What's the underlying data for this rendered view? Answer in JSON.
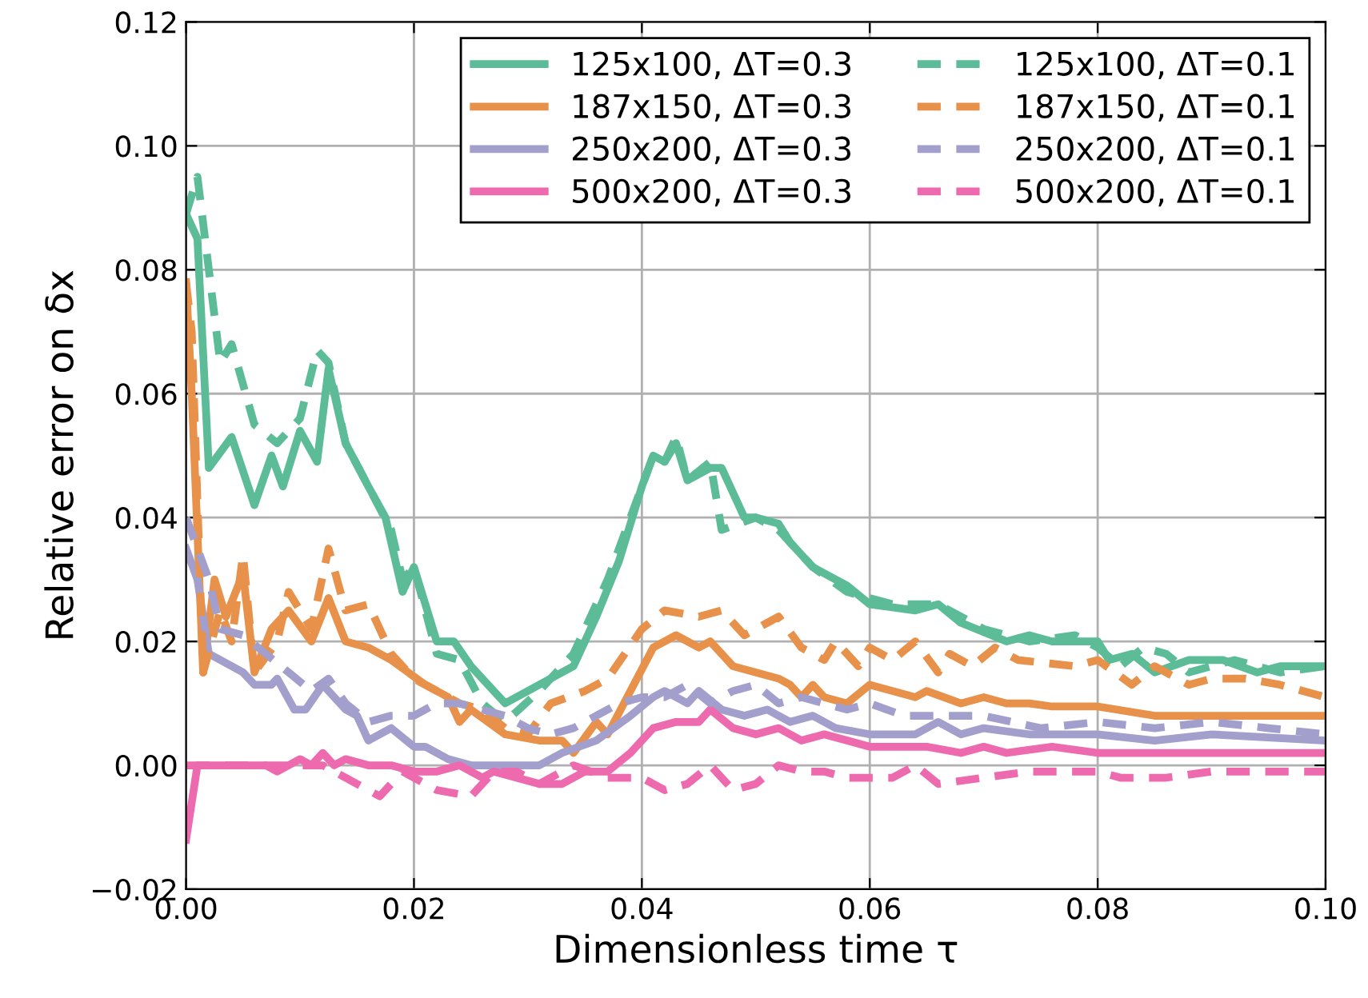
{
  "chart_data": {
    "type": "line",
    "xlabel": "Dimensionless time τ",
    "ylabel": "Relative error on δx",
    "xlim": [
      0,
      0.1
    ],
    "ylim": [
      -0.02,
      0.12
    ],
    "xticks": [
      {
        "value": 0,
        "label": "0.00"
      },
      {
        "value": 0.02,
        "label": "0.02"
      },
      {
        "value": 0.04,
        "label": "0.04"
      },
      {
        "value": 0.06,
        "label": "0.06"
      },
      {
        "value": 0.08,
        "label": "0.08"
      },
      {
        "value": 0.1,
        "label": "0.10"
      }
    ],
    "yticks": [
      {
        "value": -0.02,
        "label": "−0.02"
      },
      {
        "value": 0,
        "label": "0.00"
      },
      {
        "value": 0.02,
        "label": "0.02"
      },
      {
        "value": 0.04,
        "label": "0.04"
      },
      {
        "value": 0.06,
        "label": "0.06"
      },
      {
        "value": 0.08,
        "label": "0.08"
      },
      {
        "value": 0.1,
        "label": "0.10"
      },
      {
        "value": 0.12,
        "label": "0.12"
      }
    ],
    "grid": true,
    "legend": "top right",
    "marker": "none",
    "series": [
      {
        "name": "125x100, ΔT=0.3",
        "color": "#5cbc98",
        "line_style": "solid",
        "x": [
          0,
          0.001,
          0.002,
          0.004,
          0.006,
          0.0075,
          0.0085,
          0.01,
          0.0115,
          0.0125,
          0.014,
          0.016,
          0.0175,
          0.019,
          0.02,
          0.022,
          0.0235,
          0.025,
          0.028,
          0.031,
          0.034,
          0.036,
          0.038,
          0.04,
          0.041,
          0.042,
          0.043,
          0.044,
          0.046,
          0.047,
          0.049,
          0.05,
          0.052,
          0.053,
          0.055,
          0.058,
          0.06,
          0.064,
          0.066,
          0.068,
          0.072,
          0.074,
          0.076,
          0.08,
          0.081,
          0.083,
          0.085,
          0.088,
          0.091,
          0.094,
          0.096,
          0.098,
          0.1
        ],
        "values": [
          0.089,
          0.085,
          0.048,
          0.053,
          0.042,
          0.05,
          0.045,
          0.054,
          0.049,
          0.064,
          0.052,
          0.045,
          0.04,
          0.028,
          0.032,
          0.02,
          0.02,
          0.016,
          0.01,
          0.013,
          0.016,
          0.024,
          0.033,
          0.045,
          0.05,
          0.049,
          0.052,
          0.046,
          0.048,
          0.048,
          0.04,
          0.04,
          0.039,
          0.036,
          0.032,
          0.029,
          0.026,
          0.025,
          0.026,
          0.023,
          0.02,
          0.021,
          0.02,
          0.02,
          0.017,
          0.018,
          0.015,
          0.017,
          0.017,
          0.015,
          0.016,
          0.016,
          0.016
        ]
      },
      {
        "name": "187x150, ΔT=0.3",
        "color": "#e8914a",
        "line_style": "solid",
        "x": [
          0,
          0.0005,
          0.0015,
          0.0025,
          0.0035,
          0.005,
          0.006,
          0.0075,
          0.009,
          0.011,
          0.0125,
          0.014,
          0.016,
          0.018,
          0.021,
          0.023,
          0.024,
          0.025,
          0.028,
          0.031,
          0.033,
          0.034,
          0.036,
          0.037,
          0.039,
          0.041,
          0.043,
          0.045,
          0.046,
          0.048,
          0.05,
          0.052,
          0.053,
          0.054,
          0.055,
          0.056,
          0.058,
          0.06,
          0.062,
          0.064,
          0.065,
          0.068,
          0.07,
          0.072,
          0.074,
          0.076,
          0.078,
          0.08,
          0.085,
          0.09,
          0.1
        ],
        "values": [
          0.078,
          0.06,
          0.015,
          0.03,
          0.024,
          0.031,
          0.015,
          0.022,
          0.025,
          0.02,
          0.027,
          0.02,
          0.019,
          0.017,
          0.013,
          0.011,
          0.007,
          0.009,
          0.005,
          0.004,
          0.004,
          0.002,
          0.007,
          0.005,
          0.012,
          0.019,
          0.021,
          0.019,
          0.02,
          0.016,
          0.015,
          0.014,
          0.013,
          0.011,
          0.013,
          0.011,
          0.01,
          0.013,
          0.012,
          0.011,
          0.012,
          0.01,
          0.011,
          0.01,
          0.01,
          0.0095,
          0.0095,
          0.0095,
          0.008,
          0.008,
          0.008
        ]
      },
      {
        "name": "250x200, ΔT=0.3",
        "color": "#a39fcc",
        "line_style": "solid",
        "x": [
          0,
          0.001,
          0.002,
          0.004,
          0.005,
          0.006,
          0.0075,
          0.008,
          0.0095,
          0.0105,
          0.012,
          0.014,
          0.015,
          0.016,
          0.018,
          0.02,
          0.021,
          0.023,
          0.025,
          0.028,
          0.031,
          0.033,
          0.036,
          0.039,
          0.041,
          0.042,
          0.044,
          0.045,
          0.047,
          0.049,
          0.051,
          0.053,
          0.055,
          0.057,
          0.06,
          0.064,
          0.066,
          0.068,
          0.07,
          0.074,
          0.08,
          0.085,
          0.09,
          0.1
        ],
        "values": [
          0.035,
          0.03,
          0.018,
          0.016,
          0.015,
          0.013,
          0.013,
          0.014,
          0.009,
          0.009,
          0.013,
          0.009,
          0.008,
          0.004,
          0.006,
          0.003,
          0.003,
          0.001,
          0.0,
          0.0,
          0.0,
          0.002,
          0.004,
          0.008,
          0.011,
          0.012,
          0.01,
          0.012,
          0.009,
          0.008,
          0.009,
          0.007,
          0.008,
          0.006,
          0.005,
          0.005,
          0.007,
          0.005,
          0.006,
          0.005,
          0.005,
          0.004,
          0.005,
          0.004
        ]
      },
      {
        "name": "500x200, ΔT=0.3",
        "color": "#ee6aae",
        "line_style": "solid",
        "x": [
          0,
          0.001,
          0.003,
          0.005,
          0.007,
          0.008,
          0.01,
          0.011,
          0.012,
          0.013,
          0.014,
          0.016,
          0.018,
          0.02,
          0.022,
          0.024,
          0.026,
          0.027,
          0.029,
          0.031,
          0.033,
          0.035,
          0.037,
          0.039,
          0.041,
          0.043,
          0.045,
          0.046,
          0.048,
          0.05,
          0.052,
          0.054,
          0.056,
          0.058,
          0.06,
          0.065,
          0.068,
          0.07,
          0.072,
          0.076,
          0.08,
          0.085,
          0.09,
          0.1
        ],
        "values": [
          -0.012,
          0.0,
          0.0,
          0.0,
          0.0,
          -0.001,
          0.001,
          0.0,
          0.002,
          0.0,
          0.001,
          0.0,
          0.0,
          -0.001,
          -0.001,
          0.0,
          -0.002,
          -0.001,
          -0.002,
          -0.003,
          -0.003,
          -0.001,
          -0.001,
          0.002,
          0.006,
          0.007,
          0.007,
          0.009,
          0.006,
          0.005,
          0.006,
          0.004,
          0.005,
          0.004,
          0.003,
          0.003,
          0.002,
          0.003,
          0.002,
          0.003,
          0.002,
          0.002,
          0.002,
          0.002
        ]
      },
      {
        "name": "125x100, ΔT=0.1",
        "color": "#5cbc98",
        "line_style": "dashed",
        "x": [
          0,
          0.001,
          0.003,
          0.004,
          0.006,
          0.008,
          0.01,
          0.0115,
          0.0125,
          0.014,
          0.016,
          0.018,
          0.019,
          0.02,
          0.022,
          0.024,
          0.026,
          0.028,
          0.031,
          0.034,
          0.037,
          0.04,
          0.041,
          0.042,
          0.043,
          0.044,
          0.046,
          0.047,
          0.05,
          0.052,
          0.055,
          0.058,
          0.062,
          0.066,
          0.07,
          0.074,
          0.078,
          0.08,
          0.082,
          0.084,
          0.086,
          0.088,
          0.092,
          0.096,
          0.1
        ],
        "values": [
          0.089,
          0.095,
          0.065,
          0.068,
          0.055,
          0.052,
          0.056,
          0.067,
          0.065,
          0.052,
          0.045,
          0.038,
          0.03,
          0.032,
          0.018,
          0.017,
          0.01,
          0.007,
          0.012,
          0.018,
          0.03,
          0.045,
          0.05,
          0.049,
          0.053,
          0.046,
          0.049,
          0.038,
          0.04,
          0.038,
          0.032,
          0.028,
          0.026,
          0.026,
          0.022,
          0.02,
          0.021,
          0.019,
          0.016,
          0.019,
          0.018,
          0.015,
          0.017,
          0.015,
          0.016
        ]
      },
      {
        "name": "187x150, ΔT=0.1",
        "color": "#e8914a",
        "line_style": "dashed",
        "x": [
          0,
          0.0005,
          0.0015,
          0.003,
          0.004,
          0.005,
          0.006,
          0.008,
          0.009,
          0.011,
          0.0125,
          0.014,
          0.016,
          0.018,
          0.02,
          0.022,
          0.024,
          0.026,
          0.028,
          0.03,
          0.032,
          0.035,
          0.037,
          0.04,
          0.042,
          0.045,
          0.047,
          0.049,
          0.051,
          0.052,
          0.054,
          0.056,
          0.057,
          0.059,
          0.06,
          0.062,
          0.064,
          0.066,
          0.067,
          0.069,
          0.071,
          0.073,
          0.078,
          0.08,
          0.083,
          0.085,
          0.088,
          0.09,
          0.093,
          0.096,
          0.1
        ],
        "values": [
          0.078,
          0.07,
          0.015,
          0.025,
          0.02,
          0.034,
          0.015,
          0.02,
          0.028,
          0.022,
          0.035,
          0.025,
          0.026,
          0.018,
          0.014,
          0.012,
          0.01,
          0.009,
          0.006,
          0.005,
          0.01,
          0.012,
          0.014,
          0.022,
          0.025,
          0.024,
          0.025,
          0.021,
          0.023,
          0.024,
          0.019,
          0.017,
          0.02,
          0.016,
          0.019,
          0.017,
          0.02,
          0.015,
          0.018,
          0.016,
          0.019,
          0.017,
          0.016,
          0.017,
          0.013,
          0.016,
          0.013,
          0.014,
          0.014,
          0.013,
          0.011
        ]
      },
      {
        "name": "250x200, ΔT=0.1",
        "color": "#a39fcc",
        "line_style": "dashed",
        "x": [
          0,
          0.002,
          0.003,
          0.005,
          0.007,
          0.009,
          0.011,
          0.0125,
          0.014,
          0.016,
          0.018,
          0.02,
          0.022,
          0.024,
          0.026,
          0.028,
          0.03,
          0.032,
          0.034,
          0.036,
          0.038,
          0.04,
          0.042,
          0.044,
          0.046,
          0.048,
          0.05,
          0.052,
          0.054,
          0.056,
          0.058,
          0.06,
          0.063,
          0.066,
          0.07,
          0.075,
          0.08,
          0.085,
          0.09,
          0.095,
          0.1
        ],
        "values": [
          0.04,
          0.03,
          0.022,
          0.021,
          0.018,
          0.015,
          0.012,
          0.014,
          0.01,
          0.007,
          0.008,
          0.008,
          0.01,
          0.01,
          0.009,
          0.008,
          0.006,
          0.005,
          0.006,
          0.008,
          0.01,
          0.011,
          0.011,
          0.013,
          0.01,
          0.012,
          0.013,
          0.01,
          0.011,
          0.01,
          0.009,
          0.01,
          0.008,
          0.008,
          0.008,
          0.006,
          0.007,
          0.006,
          0.007,
          0.006,
          0.005
        ]
      },
      {
        "name": "500x200, ΔT=0.1",
        "color": "#ee6aae",
        "line_style": "dashed",
        "x": [
          0,
          0.004,
          0.008,
          0.012,
          0.014,
          0.017,
          0.019,
          0.022,
          0.025,
          0.027,
          0.029,
          0.031,
          0.034,
          0.037,
          0.04,
          0.042,
          0.044,
          0.046,
          0.048,
          0.05,
          0.052,
          0.054,
          0.056,
          0.058,
          0.062,
          0.064,
          0.066,
          0.07,
          0.074,
          0.08,
          0.082,
          0.086,
          0.09,
          0.1
        ],
        "values": [
          0.0,
          0.0,
          0.0,
          0.0,
          -0.002,
          -0.005,
          -0.001,
          -0.004,
          -0.005,
          -0.001,
          -0.001,
          -0.003,
          0.0,
          -0.002,
          -0.002,
          -0.004,
          -0.003,
          0.0,
          -0.004,
          -0.003,
          0.0,
          -0.001,
          -0.001,
          -0.002,
          -0.002,
          0.0,
          -0.003,
          -0.002,
          -0.001,
          -0.001,
          -0.002,
          -0.002,
          -0.001,
          -0.001
        ]
      }
    ]
  }
}
